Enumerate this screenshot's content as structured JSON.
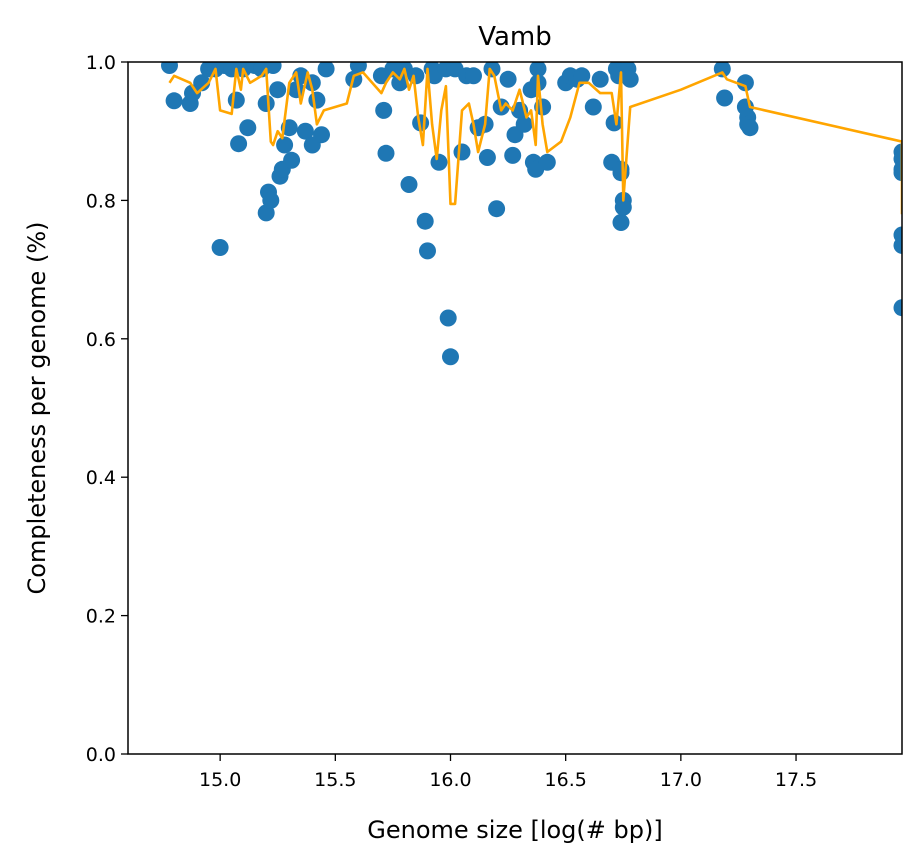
{
  "chart_data": {
    "type": "scatter",
    "title": "Vamb",
    "xlabel": "Genome size [log(# bp)]",
    "ylabel": "Completeness per genome (%)",
    "xlim": [
      14.6,
      17.96
    ],
    "ylim": [
      0.0,
      1.0
    ],
    "xticks": [
      15.0,
      15.5,
      16.0,
      16.5,
      17.0,
      17.5
    ],
    "xtick_labels": [
      "15.0",
      "15.5",
      "16.0",
      "16.5",
      "17.0",
      "17.5"
    ],
    "yticks": [
      0.0,
      0.2,
      0.4,
      0.6,
      0.8,
      1.0
    ],
    "ytick_labels": [
      "0.0",
      "0.2",
      "0.4",
      "0.6",
      "0.8",
      "1.0"
    ],
    "grid": false,
    "colors": {
      "points": "#1f77b4",
      "line": "#ffa500"
    },
    "points": {
      "x": [
        14.78,
        14.8,
        14.87,
        14.88,
        14.92,
        14.95,
        14.98,
        15.0,
        15.02,
        15.05,
        15.07,
        15.08,
        15.1,
        15.12,
        15.15,
        15.18,
        15.2,
        15.2,
        15.21,
        15.22,
        15.23,
        15.25,
        15.26,
        15.27,
        15.28,
        15.3,
        15.31,
        15.33,
        15.35,
        15.37,
        15.4,
        15.4,
        15.42,
        15.44,
        15.46,
        15.58,
        15.6,
        15.7,
        15.71,
        15.72,
        15.75,
        15.78,
        15.8,
        15.82,
        15.85,
        15.87,
        15.89,
        15.9,
        15.92,
        15.93,
        15.95,
        15.98,
        15.99,
        16.0,
        16.02,
        16.05,
        16.07,
        16.1,
        16.12,
        16.15,
        16.16,
        16.18,
        16.2,
        16.22,
        16.25,
        16.27,
        16.28,
        16.3,
        16.32,
        16.35,
        16.36,
        16.37,
        16.38,
        16.38,
        16.4,
        16.42,
        16.5,
        16.52,
        16.55,
        16.57,
        16.62,
        16.65,
        16.7,
        16.71,
        16.72,
        16.73,
        16.74,
        16.74,
        16.74,
        16.75,
        16.75,
        16.77,
        16.78,
        17.18,
        17.19,
        17.28,
        17.28,
        17.29,
        17.29,
        17.3,
        17.96,
        17.96,
        17.96,
        17.96,
        17.96,
        17.96,
        17.96
      ],
      "y": [
        0.995,
        0.944,
        0.94,
        0.955,
        0.97,
        0.99,
        0.99,
        0.732,
        0.995,
        0.99,
        0.945,
        0.882,
        0.99,
        0.905,
        0.995,
        0.99,
        0.94,
        0.782,
        0.812,
        0.8,
        0.995,
        0.96,
        0.835,
        0.845,
        0.88,
        0.905,
        0.858,
        0.96,
        0.98,
        0.9,
        0.97,
        0.88,
        0.945,
        0.895,
        0.99,
        0.975,
        0.995,
        0.98,
        0.93,
        0.868,
        0.99,
        0.97,
        0.99,
        0.823,
        0.98,
        0.912,
        0.77,
        0.727,
        0.99,
        0.98,
        0.855,
        0.99,
        0.63,
        0.574,
        0.99,
        0.87,
        0.98,
        0.98,
        0.905,
        0.91,
        0.862,
        0.99,
        0.788,
        0.935,
        0.975,
        0.865,
        0.895,
        0.93,
        0.91,
        0.96,
        0.855,
        0.845,
        0.97,
        0.99,
        0.935,
        0.855,
        0.97,
        0.98,
        0.975,
        0.98,
        0.935,
        0.975,
        0.855,
        0.912,
        0.99,
        0.98,
        0.845,
        0.84,
        0.768,
        0.8,
        0.79,
        0.99,
        0.975,
        0.99,
        0.948,
        0.97,
        0.935,
        0.92,
        0.91,
        0.905,
        0.87,
        0.86,
        0.845,
        0.75,
        0.735,
        0.645,
        0.84
      ]
    },
    "line": {
      "x": [
        14.78,
        14.8,
        14.87,
        14.9,
        14.95,
        14.98,
        15.0,
        15.05,
        15.07,
        15.09,
        15.1,
        15.13,
        15.18,
        15.2,
        15.22,
        15.23,
        15.25,
        15.27,
        15.3,
        15.33,
        15.35,
        15.38,
        15.4,
        15.42,
        15.45,
        15.55,
        15.58,
        15.62,
        15.7,
        15.72,
        15.75,
        15.78,
        15.8,
        15.82,
        15.84,
        15.86,
        15.88,
        15.9,
        15.92,
        15.94,
        15.96,
        15.98,
        16.0,
        16.02,
        16.05,
        16.08,
        16.1,
        16.12,
        16.15,
        16.17,
        16.19,
        16.22,
        16.24,
        16.27,
        16.3,
        16.33,
        16.35,
        16.37,
        16.38,
        16.4,
        16.42,
        16.48,
        16.52,
        16.56,
        16.6,
        16.65,
        16.7,
        16.72,
        16.74,
        16.75,
        16.78,
        17.0,
        17.18,
        17.2,
        17.28,
        17.3,
        17.96,
        17.96
      ],
      "y": [
        0.97,
        0.98,
        0.97,
        0.955,
        0.97,
        0.99,
        0.93,
        0.925,
        0.99,
        0.96,
        0.99,
        0.97,
        0.98,
        0.99,
        0.885,
        0.88,
        0.9,
        0.89,
        0.97,
        0.985,
        0.94,
        0.985,
        0.96,
        0.91,
        0.93,
        0.94,
        0.98,
        0.985,
        0.955,
        0.97,
        0.985,
        0.975,
        0.99,
        0.96,
        0.98,
        0.92,
        0.88,
        0.99,
        0.91,
        0.86,
        0.93,
        0.965,
        0.795,
        0.795,
        0.93,
        0.94,
        0.91,
        0.87,
        0.91,
        0.99,
        0.98,
        0.93,
        0.94,
        0.93,
        0.96,
        0.92,
        0.93,
        0.88,
        0.98,
        0.91,
        0.87,
        0.885,
        0.92,
        0.97,
        0.97,
        0.955,
        0.955,
        0.91,
        0.985,
        0.8,
        0.935,
        0.96,
        0.985,
        0.975,
        0.965,
        0.935,
        0.885,
        0.78
      ]
    }
  }
}
